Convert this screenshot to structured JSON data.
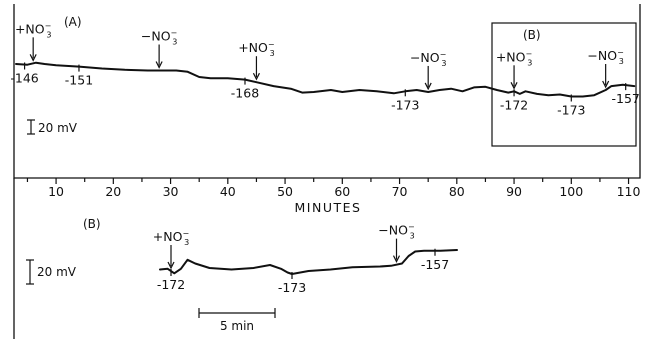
{
  "chart_data": [
    {
      "type": "line",
      "panel_label": "(A)",
      "xlabel": "MINUTES",
      "xlim": [
        3,
        112
      ],
      "x_ticks": [
        10,
        20,
        30,
        40,
        50,
        60,
        70,
        80,
        90,
        100,
        110
      ],
      "scale_bar": "20 mV",
      "inset_label": "(B)",
      "series": [
        {
          "x": [
            3,
            5,
            6.5,
            8,
            10,
            14,
            18,
            22,
            26,
            29,
            31,
            33,
            35,
            37,
            40,
            43,
            45,
            48,
            51,
            53,
            55,
            58,
            60,
            63,
            66,
            69,
            71,
            73,
            75,
            77,
            79,
            81,
            83,
            85,
            87,
            89,
            90,
            91,
            92,
            94,
            96,
            98,
            100,
            102,
            104,
            106,
            107,
            109,
            111
          ],
          "y": [
            -146,
            -146.5,
            -145,
            -146,
            -147,
            -148,
            -149.5,
            -150.5,
            -151,
            -151,
            -151,
            -152,
            -156,
            -157,
            -157,
            -158,
            -160,
            -163,
            -165,
            -168,
            -167.5,
            -166,
            -167.5,
            -166,
            -167,
            -168.5,
            -167,
            -166,
            -167.5,
            -166,
            -165,
            -167,
            -164,
            -163.5,
            -166,
            -168,
            -167,
            -169,
            -167,
            -169,
            -170,
            -169.5,
            -171,
            -171,
            -170,
            -166,
            -163,
            -162,
            -163
          ]
        }
      ],
      "annotations": [
        {
          "text": "+NO",
          "sub": "3",
          "sup": "−",
          "x": 6
        },
        {
          "text": "−NO",
          "sub": "3",
          "sup": "−",
          "x": 28
        },
        {
          "text": "+NO",
          "sub": "3",
          "sup": "−",
          "x": 45
        },
        {
          "text": "−NO",
          "sub": "3",
          "sup": "−",
          "x": 75
        },
        {
          "text": "+NO",
          "sub": "3",
          "sup": "−",
          "x": 90
        },
        {
          "text": "−NO",
          "sub": "3",
          "sup": "−",
          "x": 106
        }
      ],
      "value_labels": [
        {
          "text": "-146",
          "x": 4.5
        },
        {
          "text": "-151",
          "x": 14
        },
        {
          "text": "-168",
          "x": 43
        },
        {
          "text": "-173",
          "x": 71
        },
        {
          "text": "-172",
          "x": 90
        },
        {
          "text": "-173",
          "x": 100
        },
        {
          "text": "-157",
          "x": 109.5
        }
      ]
    },
    {
      "type": "line",
      "panel_label": "(B)",
      "scale_bar": "20 mV",
      "time_bar": "5 min",
      "series": [
        {
          "x": [
            0,
            0.7,
            1.3,
            1.9,
            2.5,
            3.2,
            4.5,
            6.5,
            8.5,
            10,
            11,
            11.6,
            12,
            13.5,
            15.5,
            17.5,
            20,
            21,
            22,
            22.6,
            23.2,
            24,
            25.5,
            27
          ],
          "y": [
            -168,
            -167.5,
            -170.5,
            -167.5,
            -161.5,
            -164,
            -167,
            -168,
            -167,
            -165,
            -167.5,
            -170,
            -171,
            -169,
            -168,
            -166.5,
            -166,
            -165.5,
            -164,
            -159,
            -156,
            -155.5,
            -155.5,
            -155
          ]
        }
      ],
      "annotations": [
        {
          "text": "+NO",
          "sub": "3",
          "sup": "−",
          "x": 1
        },
        {
          "text": "−NO",
          "sub": "3",
          "sup": "−",
          "x": 21.5
        }
      ],
      "value_labels": [
        {
          "text": "-172",
          "x": 1
        },
        {
          "text": "-173",
          "x": 12
        },
        {
          "text": "-157",
          "x": 25
        }
      ]
    }
  ]
}
